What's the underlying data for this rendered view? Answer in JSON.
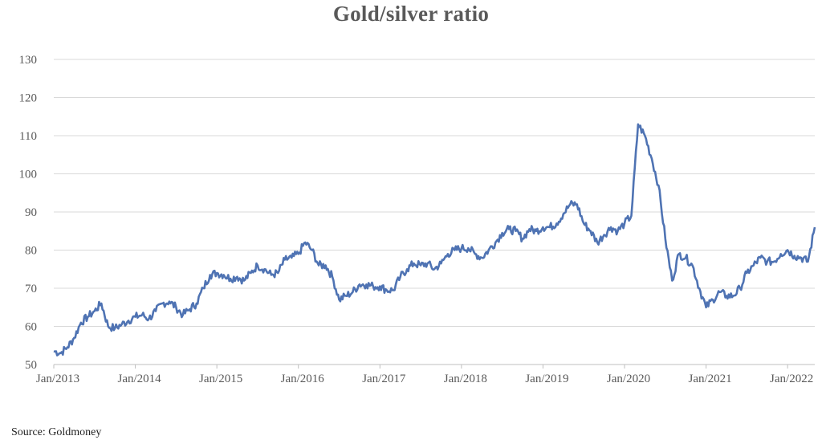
{
  "source_note": "Source: Goldmoney",
  "colors": {
    "line": "#4f73b3",
    "grid": "#d9d9d9",
    "axis": "#bfbfbf",
    "text": "#595959"
  },
  "chart_data": {
    "type": "line",
    "title": "Gold/silver ratio",
    "xlabel": "",
    "ylabel": "",
    "ylim": [
      50,
      130
    ],
    "xlim": [
      "2013-01",
      "2022-05"
    ],
    "grid": true,
    "legend": "none",
    "y_ticks": [
      50,
      60,
      70,
      80,
      90,
      100,
      110,
      120,
      130
    ],
    "x_ticks": [
      "Jan/2013",
      "Jan/2014",
      "Jan/2015",
      "Jan/2016",
      "Jan/2017",
      "Jan/2018",
      "Jan/2019",
      "Jan/2020",
      "Jan/2021",
      "Jan/2022"
    ],
    "series": [
      {
        "x": [
          "2013-01",
          "2013-02",
          "2013-03",
          "2013-04",
          "2013-05",
          "2013-06",
          "2013-07",
          "2013-08",
          "2013-09",
          "2013-10",
          "2013-11",
          "2013-12",
          "2014-01",
          "2014-02",
          "2014-03",
          "2014-04",
          "2014-05",
          "2014-06",
          "2014-07",
          "2014-08",
          "2014-09",
          "2014-10",
          "2014-11",
          "2014-12",
          "2015-01",
          "2015-02",
          "2015-03",
          "2015-04",
          "2015-05",
          "2015-06",
          "2015-07",
          "2015-08",
          "2015-09",
          "2015-10",
          "2015-11",
          "2015-12",
          "2016-01",
          "2016-02",
          "2016-03",
          "2016-04",
          "2016-05",
          "2016-06",
          "2016-07",
          "2016-08",
          "2016-09",
          "2016-10",
          "2016-11",
          "2016-12",
          "2017-01",
          "2017-02",
          "2017-03",
          "2017-04",
          "2017-05",
          "2017-06",
          "2017-07",
          "2017-08",
          "2017-09",
          "2017-10",
          "2017-11",
          "2017-12",
          "2018-01",
          "2018-02",
          "2018-03",
          "2018-04",
          "2018-05",
          "2018-06",
          "2018-07",
          "2018-08",
          "2018-09",
          "2018-10",
          "2018-11",
          "2018-12",
          "2019-01",
          "2019-02",
          "2019-03",
          "2019-04",
          "2019-05",
          "2019-06",
          "2019-07",
          "2019-08",
          "2019-09",
          "2019-10",
          "2019-11",
          "2019-12",
          "2020-01",
          "2020-02",
          "2020-03",
          "2020-04",
          "2020-05",
          "2020-06",
          "2020-07",
          "2020-08",
          "2020-09",
          "2020-10",
          "2020-11",
          "2020-12",
          "2021-01",
          "2021-02",
          "2021-03",
          "2021-04",
          "2021-05",
          "2021-06",
          "2021-07",
          "2021-08",
          "2021-09",
          "2021-10",
          "2021-11",
          "2021-12",
          "2022-01",
          "2022-02",
          "2022-03",
          "2022-04",
          "2022-05"
        ],
        "values": [
          53.5,
          53,
          54.5,
          57,
          61,
          62.5,
          64,
          66,
          60,
          59.5,
          60.5,
          61.5,
          62.5,
          63,
          62,
          64,
          66,
          66.5,
          65,
          63,
          64.5,
          66,
          70,
          73.5,
          74,
          73.5,
          72.5,
          73,
          72,
          74,
          76,
          75,
          73.5,
          74,
          77.5,
          78,
          79,
          82,
          80,
          76,
          76,
          73,
          67,
          68,
          69,
          71,
          71,
          70.5,
          70.5,
          69.5,
          69.5,
          73,
          75,
          76.5,
          76,
          76.5,
          75,
          76.5,
          79,
          80,
          80.5,
          80.5,
          79,
          78,
          80,
          82,
          84.5,
          85.5,
          85,
          83,
          85.5,
          85,
          86,
          86,
          87,
          89.5,
          92,
          92,
          87,
          85,
          82,
          84,
          86,
          85,
          87,
          89,
          113,
          110,
          104,
          97,
          83,
          72,
          79,
          78,
          76,
          70,
          65,
          67,
          69,
          68,
          68,
          70,
          74,
          76,
          78,
          77,
          77,
          79,
          80,
          78.5,
          78,
          77,
          86
        ]
      }
    ]
  }
}
